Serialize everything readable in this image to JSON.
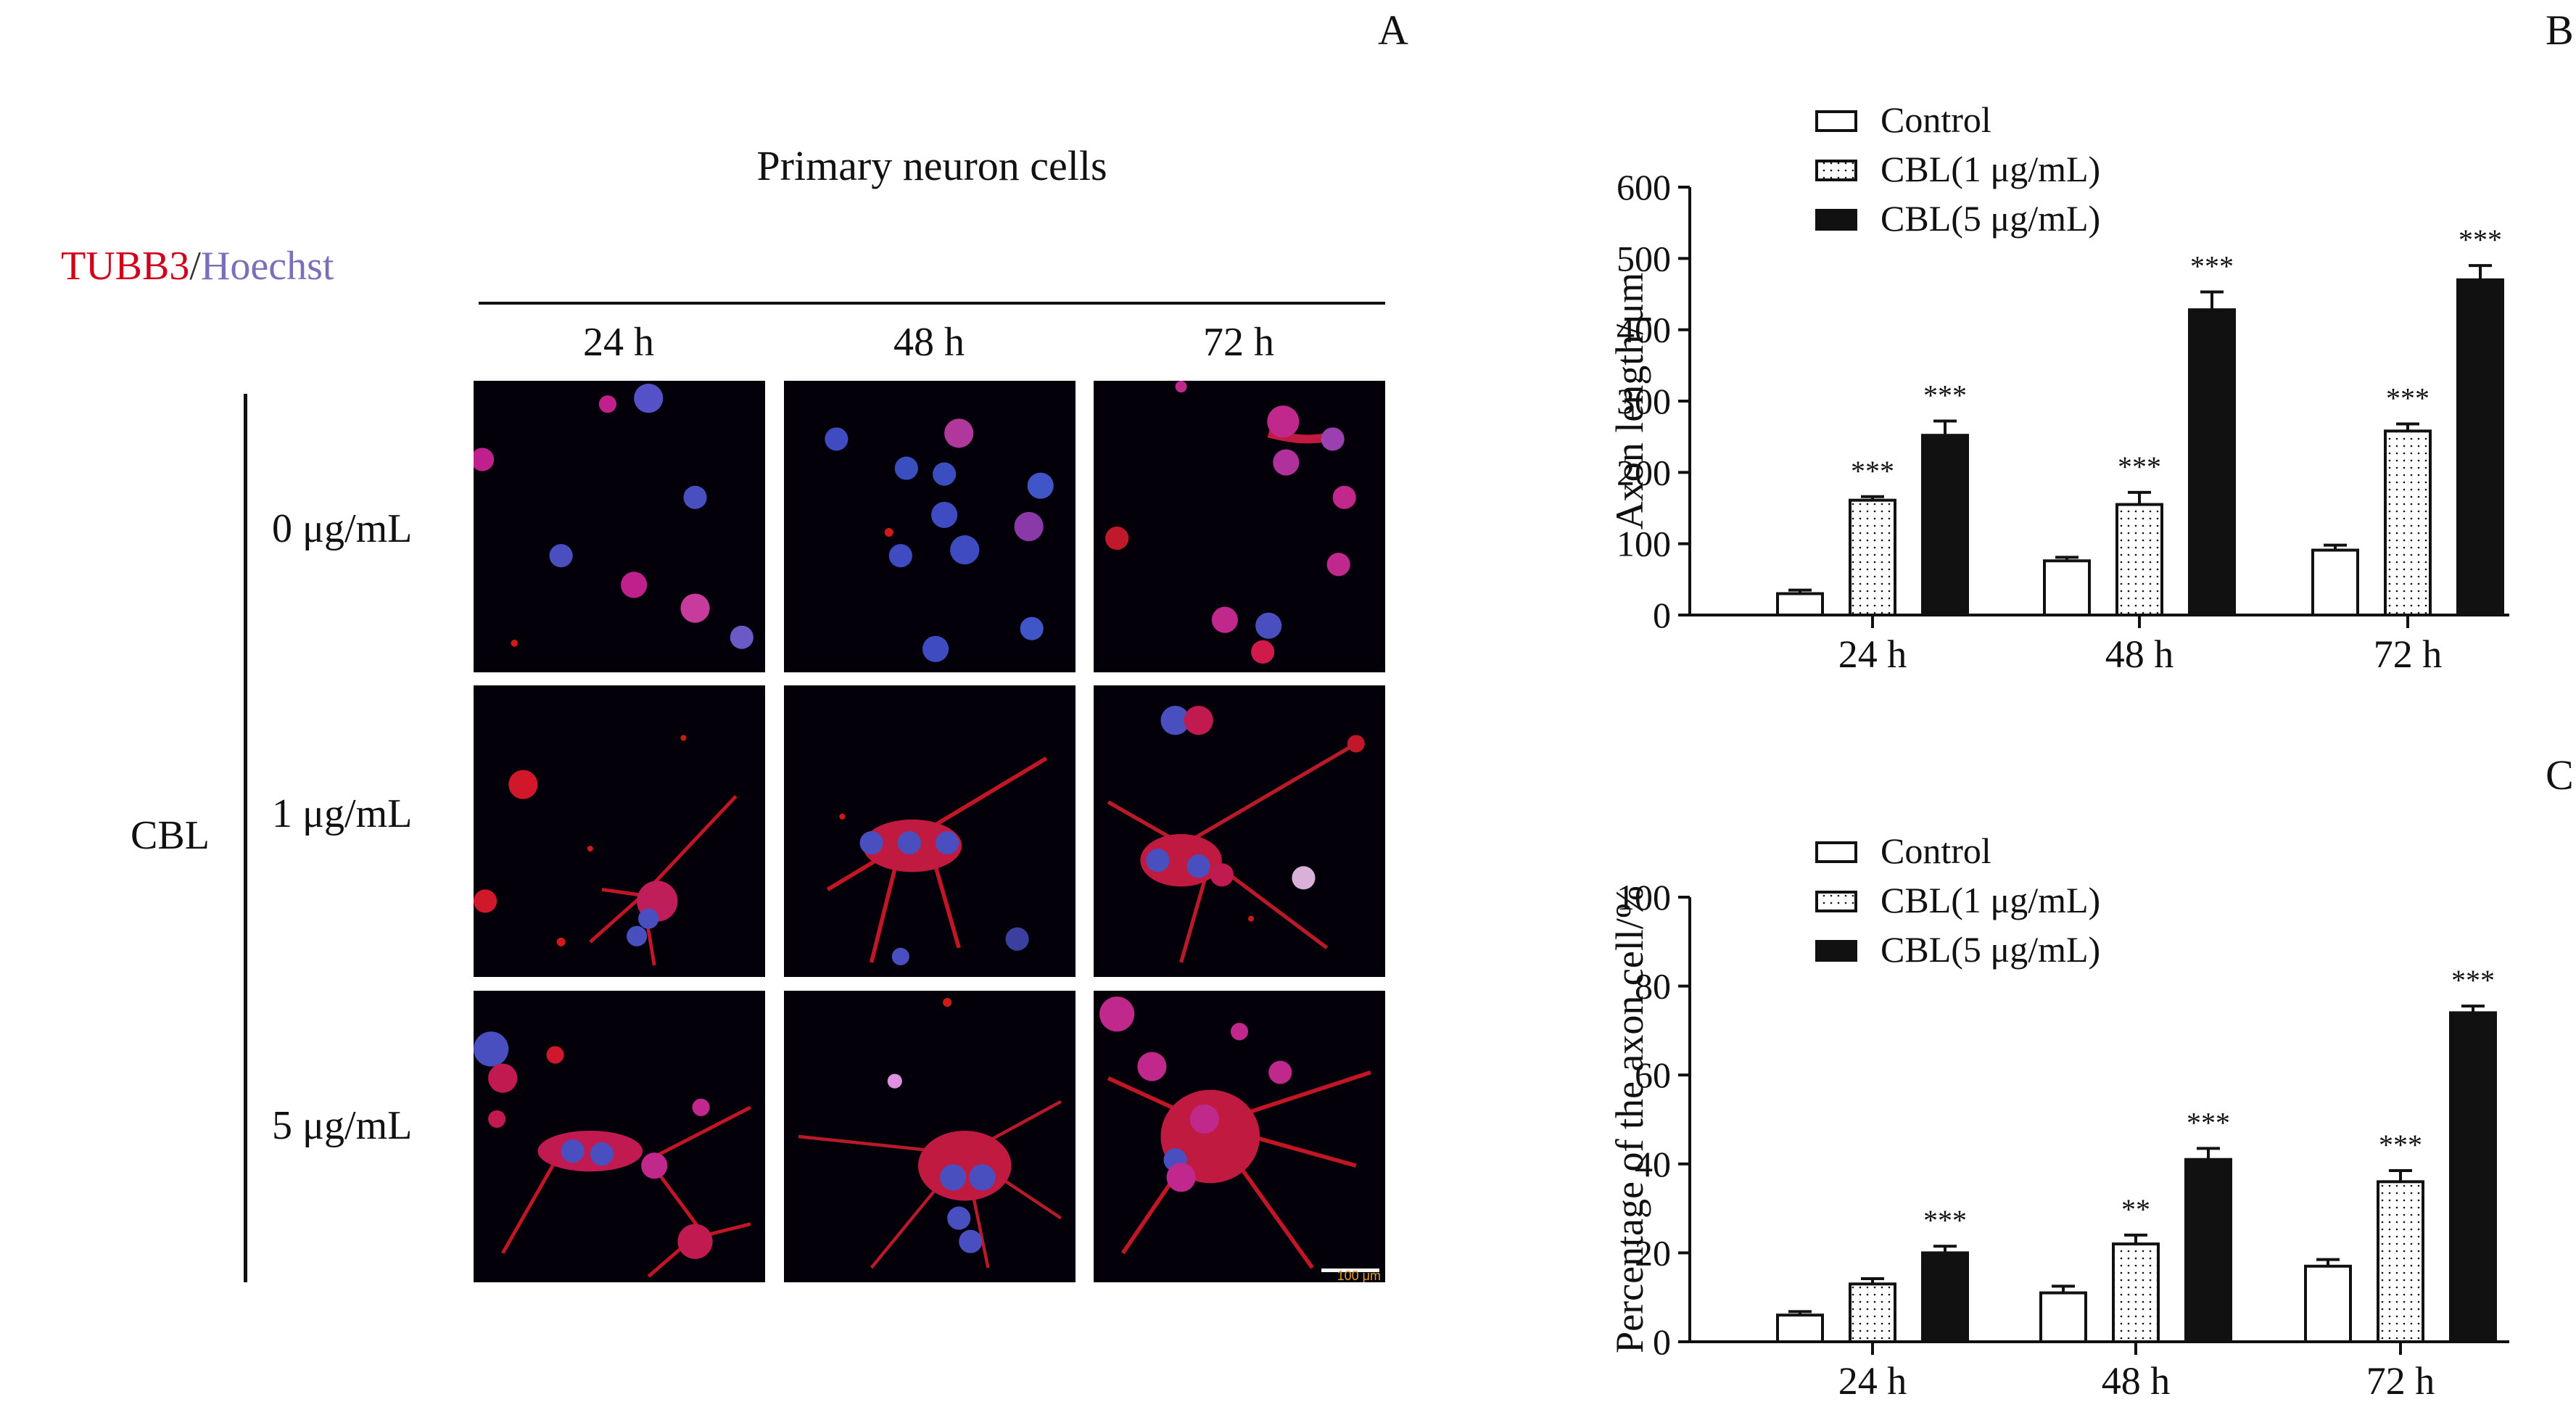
{
  "panel_labels": {
    "a": "A",
    "b": "B",
    "c": "C"
  },
  "stain_legend": {
    "red": "TUBB3",
    "slash": "/",
    "blue": "Hoechst"
  },
  "grid": {
    "title": "Primary neuron cells",
    "columns": [
      "24 h",
      "48 h",
      "72 h"
    ],
    "rows": [
      "0 μg/mL",
      "1 μg/mL",
      "5 μg/mL"
    ],
    "group_label": "CBL",
    "scale_bar": "100 μm"
  },
  "colors": {
    "red_stain": "#d0021b",
    "blue_stain": "#7a6fb8",
    "bar_dark": "#111111",
    "bar_light": "#ffffff"
  },
  "chart_data": [
    {
      "type": "bar",
      "panel": "B",
      "ylabel": "Axon length/μm",
      "xlabel": "",
      "categories": [
        "24 h",
        "48 h",
        "72 h"
      ],
      "ylim": [
        0,
        600
      ],
      "yticks": [
        0,
        100,
        200,
        300,
        400,
        500,
        600
      ],
      "legend": "top-left",
      "series": [
        {
          "name": "Control",
          "fill": "white",
          "values": [
            30,
            76,
            91
          ],
          "errors": [
            5,
            5,
            7
          ],
          "sig": [
            "",
            "",
            ""
          ]
        },
        {
          "name": "CBL(1 μg/mL)",
          "fill": "dotted",
          "values": [
            161,
            155,
            258
          ],
          "errors": [
            5,
            17,
            10
          ],
          "sig": [
            "***",
            "***",
            "***"
          ]
        },
        {
          "name": "CBL(5 μg/mL)",
          "fill": "black",
          "values": [
            252,
            428,
            470
          ],
          "errors": [
            20,
            25,
            20
          ],
          "sig": [
            "***",
            "***",
            "***"
          ]
        }
      ]
    },
    {
      "type": "bar",
      "panel": "C",
      "ylabel": "Percentage of the axon cell/%",
      "xlabel": "",
      "categories": [
        "24 h",
        "48 h",
        "72 h"
      ],
      "ylim": [
        0,
        100
      ],
      "yticks": [
        0,
        20,
        40,
        60,
        80,
        100
      ],
      "legend": "top-left",
      "series": [
        {
          "name": "Control",
          "fill": "white",
          "values": [
            6,
            11,
            17
          ],
          "errors": [
            0.8,
            1.5,
            1.5
          ],
          "sig": [
            "",
            "",
            ""
          ]
        },
        {
          "name": "CBL(1 μg/mL)",
          "fill": "dotted",
          "values": [
            13,
            22,
            36
          ],
          "errors": [
            1.2,
            2,
            2.5
          ],
          "sig": [
            "",
            "**",
            "***"
          ]
        },
        {
          "name": "CBL(5 μg/mL)",
          "fill": "black",
          "values": [
            20,
            41,
            74
          ],
          "errors": [
            1.5,
            2.5,
            1.5
          ],
          "sig": [
            "***",
            "***",
            "***"
          ]
        }
      ]
    }
  ]
}
